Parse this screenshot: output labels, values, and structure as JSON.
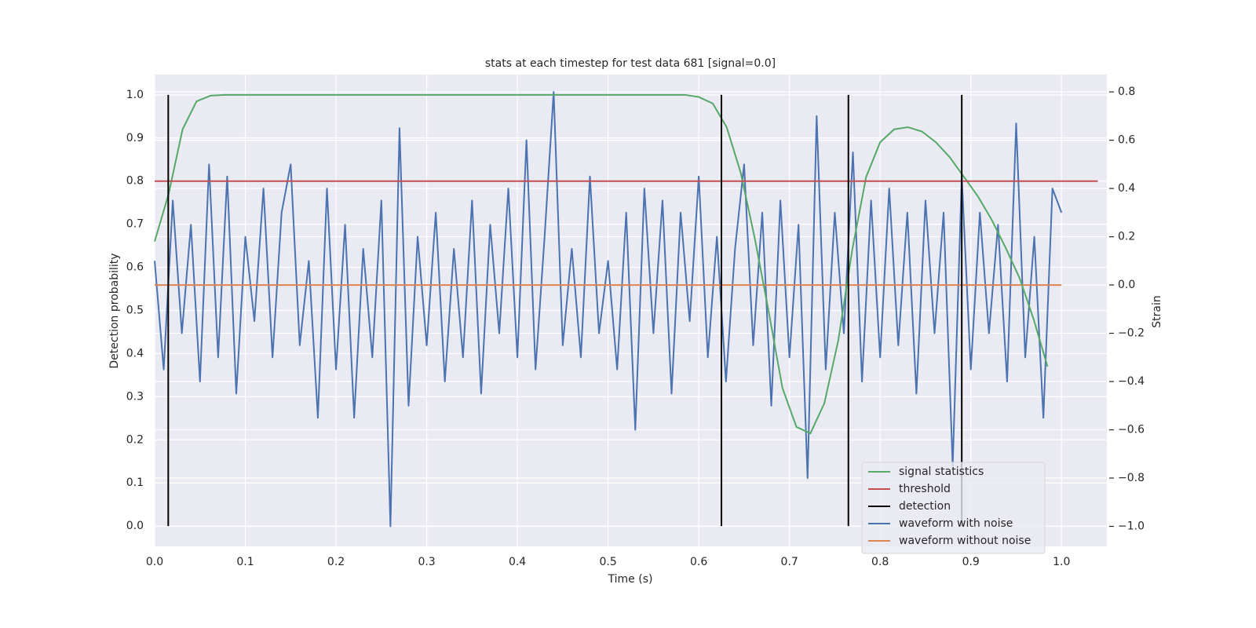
{
  "chart_data": {
    "type": "line",
    "title": "stats at each timestep for test data 681 [signal=0.0]",
    "xlabel": "Time (s)",
    "ylabel": "Detection probability",
    "y2label": "Strain",
    "xlim": [
      0,
      1.05
    ],
    "ylim": [
      -0.047,
      1.047
    ],
    "y2lim": [
      -1.083,
      0.872
    ],
    "xticks": [
      {
        "value": 0,
        "label": "0.0"
      },
      0.1,
      0.2,
      0.3,
      0.4,
      0.5,
      0.6,
      0.7,
      0.8,
      0.9,
      {
        "value": 1,
        "label": "1.0"
      }
    ],
    "yticks": [
      {
        "value": 0,
        "label": "0.0"
      },
      0.1,
      0.2,
      0.3,
      0.4,
      0.5,
      0.6,
      0.7,
      0.8,
      0.9,
      {
        "value": 1,
        "label": "1.0"
      }
    ],
    "y2ticks": [
      {
        "value": -1,
        "label": "−1.0"
      },
      {
        "value": -0.8,
        "label": "−0.8"
      },
      {
        "value": -0.6,
        "label": "−0.6"
      },
      {
        "value": -0.4,
        "label": "−0.4"
      },
      {
        "value": -0.2,
        "label": "−0.2"
      },
      {
        "value": 0,
        "label": "0.0"
      },
      0.2,
      0.4,
      0.6,
      0.8
    ],
    "grid": true,
    "legend": "lower right",
    "series": [
      {
        "name": "signal statistics",
        "color": "#55a868",
        "axis": "y",
        "x": [
          0,
          0.0154,
          0.0308,
          0.0462,
          0.0615,
          0.0769,
          0.5846,
          0.6,
          0.6154,
          0.6308,
          0.6462,
          0.6615,
          0.6769,
          0.6923,
          0.7077,
          0.7231,
          0.7385,
          0.7538,
          0.7692,
          0.7846,
          0.8,
          0.8154,
          0.8308,
          0.8462,
          0.8615,
          0.8769,
          0.8923,
          0.9077,
          0.9231,
          0.9385,
          0.9538,
          0.9692,
          0.9846
        ],
        "values": [
          0.66,
          0.77,
          0.92,
          0.985,
          0.998,
          1.0,
          1.0,
          0.995,
          0.98,
          0.925,
          0.82,
          0.67,
          0.5,
          0.32,
          0.23,
          0.215,
          0.285,
          0.43,
          0.64,
          0.81,
          0.89,
          0.92,
          0.925,
          0.915,
          0.89,
          0.855,
          0.81,
          0.765,
          0.71,
          0.645,
          0.575,
          0.48,
          0.37
        ]
      },
      {
        "name": "threshold",
        "color": "#c44e52",
        "axis": "y",
        "x": [
          0,
          1.04
        ],
        "values": [
          0.8,
          0.8
        ]
      },
      {
        "name": "detection",
        "color": "#000000",
        "axis": "y",
        "style": "vlines",
        "x": [
          0.015,
          0.625,
          0.765,
          0.89
        ],
        "ymin": 0,
        "ymax": 1
      },
      {
        "name": "waveform with noise",
        "color": "#4c72b0",
        "axis": "y2",
        "x": [
          0,
          0.01,
          0.02,
          0.03,
          0.04,
          0.05,
          0.06,
          0.07,
          0.08,
          0.09,
          0.1,
          0.11,
          0.12,
          0.13,
          0.14,
          0.15,
          0.16,
          0.17,
          0.18,
          0.19,
          0.2,
          0.21,
          0.22,
          0.23,
          0.24,
          0.25,
          0.26,
          0.27,
          0.28,
          0.29,
          0.3,
          0.31,
          0.32,
          0.33,
          0.34,
          0.35,
          0.36,
          0.37,
          0.38,
          0.39,
          0.4,
          0.41,
          0.42,
          0.43,
          0.44,
          0.45,
          0.46,
          0.47,
          0.48,
          0.49,
          0.5,
          0.51,
          0.52,
          0.53,
          0.54,
          0.55,
          0.56,
          0.57,
          0.58,
          0.59,
          0.6,
          0.61,
          0.62,
          0.63,
          0.64,
          0.65,
          0.66,
          0.67,
          0.68,
          0.69,
          0.7,
          0.71,
          0.72,
          0.73,
          0.74,
          0.75,
          0.76,
          0.77,
          0.78,
          0.79,
          0.8,
          0.81,
          0.82,
          0.83,
          0.84,
          0.85,
          0.86,
          0.87,
          0.88,
          0.89,
          0.9,
          0.91,
          0.92,
          0.93,
          0.94,
          0.95,
          0.96,
          0.97,
          0.98,
          0.99,
          1.0
        ],
        "values": [
          0.1,
          -0.35,
          0.35,
          -0.2,
          0.25,
          -0.4,
          0.5,
          -0.3,
          0.45,
          -0.45,
          0.2,
          -0.15,
          0.4,
          -0.3,
          0.3,
          0.5,
          -0.25,
          0.1,
          -0.55,
          0.4,
          -0.35,
          0.25,
          -0.55,
          0.15,
          -0.3,
          0.35,
          -1.0,
          0.65,
          -0.5,
          0.2,
          -0.25,
          0.3,
          -0.4,
          0.15,
          -0.3,
          0.35,
          -0.45,
          0.25,
          -0.2,
          0.4,
          -0.3,
          0.6,
          -0.35,
          0.2,
          0.8,
          -0.25,
          0.15,
          -0.3,
          0.45,
          -0.2,
          0.1,
          -0.35,
          0.3,
          -0.6,
          0.4,
          -0.2,
          0.35,
          -0.45,
          0.3,
          -0.15,
          0.45,
          -0.3,
          0.2,
          -0.4,
          0.15,
          0.5,
          -0.25,
          0.3,
          -0.5,
          0.35,
          -0.3,
          0.25,
          -0.8,
          0.7,
          -0.35,
          0.3,
          -0.2,
          0.55,
          -0.4,
          0.35,
          -0.3,
          0.4,
          -0.25,
          0.3,
          -0.45,
          0.35,
          -0.2,
          0.3,
          -0.75,
          0.45,
          -0.35,
          0.3,
          -0.2,
          0.25,
          -0.4,
          0.67,
          -0.3,
          0.2,
          -0.55,
          0.4,
          0.3
        ]
      },
      {
        "name": "waveform without noise",
        "color": "#dd8452",
        "axis": "y2",
        "x": [
          0,
          1.0
        ],
        "values": [
          0,
          0
        ]
      }
    ]
  }
}
